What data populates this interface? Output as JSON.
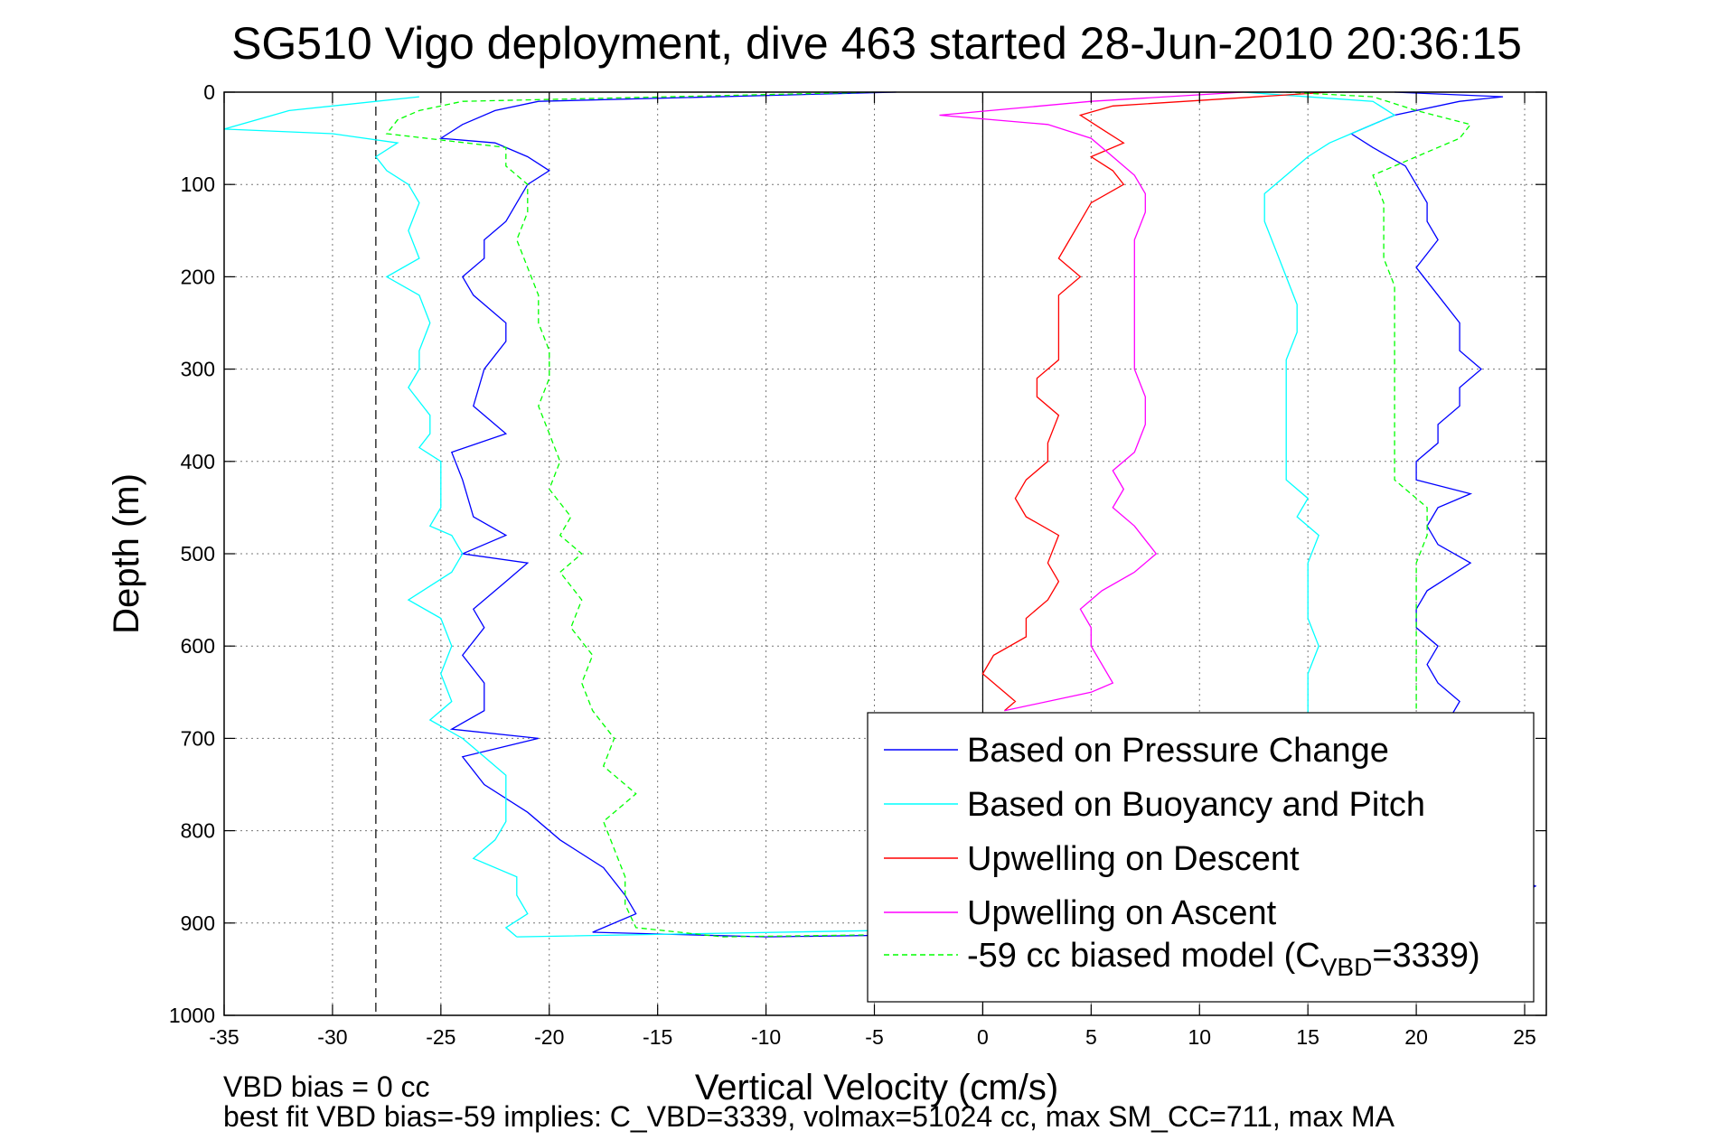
{
  "chart_data": {
    "type": "line",
    "title": "SG510 Vigo deployment, dive 463 started 28-Jun-2010 20:36:15",
    "xlabel": "Vertical Velocity (cm/s)",
    "ylabel": "Depth (m)",
    "xlim": [
      -35,
      26
    ],
    "ylim": [
      0,
      1000
    ],
    "y_reversed": true,
    "xticks": [
      -35,
      -30,
      -25,
      -20,
      -15,
      -10,
      -5,
      0,
      5,
      10,
      15,
      20,
      25
    ],
    "yticks": [
      0,
      100,
      200,
      300,
      400,
      500,
      600,
      700,
      800,
      900,
      1000
    ],
    "grid": true,
    "legend_position": "bottom-right",
    "vbd_bias_line_x": -28,
    "zero_line_x": 0,
    "notes": [
      "VBD bias = 0 cc",
      "best fit VBD bias=-59 implies: C_VBD=3339, volmax=51024 cc, max SM_CC=711, max MA"
    ],
    "series": [
      {
        "name": "Based on Pressure Change",
        "color": "#0000ff",
        "dash": "solid",
        "points": [
          [
            -4,
            0
          ],
          [
            -20.5,
            10
          ],
          [
            -22.5,
            20
          ],
          [
            -24,
            35
          ],
          [
            -25,
            50
          ],
          [
            -22.5,
            55
          ],
          [
            -21,
            70
          ],
          [
            -20,
            85
          ],
          [
            -21,
            100
          ],
          [
            -21.5,
            120
          ],
          [
            -22,
            140
          ],
          [
            -23,
            160
          ],
          [
            -23,
            180
          ],
          [
            -24,
            200
          ],
          [
            -23.5,
            220
          ],
          [
            -22,
            250
          ],
          [
            -22,
            270
          ],
          [
            -23,
            300
          ],
          [
            -23.5,
            340
          ],
          [
            -22,
            370
          ],
          [
            -24.5,
            390
          ],
          [
            -24,
            420
          ],
          [
            -23.5,
            460
          ],
          [
            -22,
            480
          ],
          [
            -24,
            500
          ],
          [
            -21,
            510
          ],
          [
            -22,
            530
          ],
          [
            -23.5,
            560
          ],
          [
            -23,
            580
          ],
          [
            -24,
            610
          ],
          [
            -23,
            640
          ],
          [
            -23,
            670
          ],
          [
            -24.5,
            690
          ],
          [
            -20.5,
            700
          ],
          [
            -24,
            720
          ],
          [
            -23,
            750
          ],
          [
            -21,
            780
          ],
          [
            -19.5,
            810
          ],
          [
            -17.5,
            840
          ],
          [
            -16.5,
            870
          ],
          [
            -16,
            890
          ],
          [
            -18,
            910
          ],
          [
            -10,
            915
          ]
        ],
        "points_ascent": [
          [
            -10,
            915
          ],
          [
            22,
            905
          ],
          [
            25.5,
            860
          ],
          [
            22,
            820
          ],
          [
            21,
            800
          ],
          [
            22,
            760
          ],
          [
            22.5,
            730
          ],
          [
            22,
            700
          ],
          [
            21.5,
            680
          ],
          [
            22,
            660
          ],
          [
            21,
            640
          ],
          [
            20.5,
            620
          ],
          [
            21,
            600
          ],
          [
            20,
            580
          ],
          [
            20,
            560
          ],
          [
            20.5,
            540
          ],
          [
            22.5,
            510
          ],
          [
            21,
            490
          ],
          [
            20.5,
            470
          ],
          [
            21,
            450
          ],
          [
            22.5,
            435
          ],
          [
            20,
            420
          ],
          [
            20,
            400
          ],
          [
            21,
            380
          ],
          [
            21,
            360
          ],
          [
            22,
            340
          ],
          [
            22,
            320
          ],
          [
            23,
            300
          ],
          [
            22,
            280
          ],
          [
            22,
            250
          ],
          [
            21,
            220
          ],
          [
            20,
            190
          ],
          [
            21,
            160
          ],
          [
            20.5,
            140
          ],
          [
            20.5,
            120
          ],
          [
            20,
            100
          ],
          [
            19.5,
            80
          ],
          [
            18,
            60
          ],
          [
            17,
            45
          ],
          [
            19,
            25
          ],
          [
            22,
            10
          ],
          [
            24,
            5
          ],
          [
            19,
            0
          ]
        ]
      },
      {
        "name": "Based on Buoyancy and Pitch",
        "color": "#00ffff",
        "dash": "solid",
        "points": [
          [
            -26,
            5
          ],
          [
            -32,
            20
          ],
          [
            -35,
            40
          ],
          [
            -30,
            45
          ],
          [
            -27,
            55
          ],
          [
            -28,
            70
          ],
          [
            -27.5,
            85
          ],
          [
            -26.5,
            100
          ],
          [
            -26,
            120
          ],
          [
            -26.5,
            150
          ],
          [
            -26,
            180
          ],
          [
            -27.5,
            200
          ],
          [
            -26,
            220
          ],
          [
            -25.5,
            250
          ],
          [
            -26,
            280
          ],
          [
            -26,
            300
          ],
          [
            -26.5,
            320
          ],
          [
            -25.5,
            350
          ],
          [
            -25.5,
            370
          ],
          [
            -26,
            385
          ],
          [
            -25,
            400
          ],
          [
            -25,
            430
          ],
          [
            -25,
            450
          ],
          [
            -25.5,
            470
          ],
          [
            -24.5,
            480
          ],
          [
            -24,
            500
          ],
          [
            -24.5,
            520
          ],
          [
            -26.5,
            550
          ],
          [
            -25,
            570
          ],
          [
            -24.5,
            600
          ],
          [
            -25,
            630
          ],
          [
            -24.5,
            660
          ],
          [
            -25.5,
            680
          ],
          [
            -24,
            700
          ],
          [
            -23,
            720
          ],
          [
            -22,
            740
          ],
          [
            -22,
            760
          ],
          [
            -22,
            790
          ],
          [
            -22.5,
            810
          ],
          [
            -23.5,
            830
          ],
          [
            -21.5,
            850
          ],
          [
            -21.5,
            870
          ],
          [
            -21,
            890
          ],
          [
            -22,
            905
          ],
          [
            -21.5,
            915
          ]
        ],
        "points_ascent": [
          [
            -21.5,
            915
          ],
          [
            15,
            900
          ],
          [
            15,
            860
          ],
          [
            15.5,
            820
          ],
          [
            15,
            780
          ],
          [
            15,
            740
          ],
          [
            15,
            700
          ],
          [
            15,
            660
          ],
          [
            15,
            630
          ],
          [
            15.5,
            600
          ],
          [
            15,
            570
          ],
          [
            15,
            540
          ],
          [
            15,
            510
          ],
          [
            15.5,
            480
          ],
          [
            14.5,
            460
          ],
          [
            15,
            440
          ],
          [
            14,
            420
          ],
          [
            14,
            390
          ],
          [
            14,
            360
          ],
          [
            14,
            320
          ],
          [
            14,
            290
          ],
          [
            14.5,
            260
          ],
          [
            14.5,
            230
          ],
          [
            14,
            200
          ],
          [
            13.5,
            170
          ],
          [
            13,
            140
          ],
          [
            13,
            110
          ],
          [
            14,
            90
          ],
          [
            15,
            70
          ],
          [
            16,
            55
          ],
          [
            17.5,
            40
          ],
          [
            19,
            25
          ],
          [
            18,
            10
          ],
          [
            12,
            0
          ]
        ]
      },
      {
        "name": "Upwelling on Descent",
        "color": "#ff0000",
        "dash": "solid",
        "points": [
          [
            16,
            0
          ],
          [
            6,
            15
          ],
          [
            4.5,
            25
          ],
          [
            5.5,
            40
          ],
          [
            6.5,
            55
          ],
          [
            5,
            70
          ],
          [
            6,
            85
          ],
          [
            6.5,
            100
          ],
          [
            5,
            120
          ],
          [
            4.5,
            140
          ],
          [
            4,
            160
          ],
          [
            3.5,
            180
          ],
          [
            4.5,
            200
          ],
          [
            3.5,
            220
          ],
          [
            3.5,
            240
          ],
          [
            3.5,
            260
          ],
          [
            3.5,
            290
          ],
          [
            2.5,
            310
          ],
          [
            2.5,
            330
          ],
          [
            3.5,
            350
          ],
          [
            3,
            380
          ],
          [
            3,
            400
          ],
          [
            2,
            420
          ],
          [
            1.5,
            440
          ],
          [
            2,
            460
          ],
          [
            3.5,
            480
          ],
          [
            3,
            510
          ],
          [
            3.5,
            530
          ],
          [
            3,
            550
          ],
          [
            2,
            570
          ],
          [
            2,
            590
          ],
          [
            0.5,
            610
          ],
          [
            0,
            630
          ],
          [
            1,
            650
          ],
          [
            1.5,
            660
          ],
          [
            1,
            670
          ]
        ]
      },
      {
        "name": "Upwelling on Ascent",
        "color": "#ff00ff",
        "dash": "solid",
        "points": [
          [
            1,
            670
          ],
          [
            5,
            650
          ],
          [
            6,
            640
          ],
          [
            5.5,
            620
          ],
          [
            5,
            600
          ],
          [
            5,
            580
          ],
          [
            4.5,
            560
          ],
          [
            5.5,
            540
          ],
          [
            7,
            520
          ],
          [
            8,
            500
          ],
          [
            7,
            470
          ],
          [
            6,
            450
          ],
          [
            6.5,
            430
          ],
          [
            6,
            410
          ],
          [
            7,
            390
          ],
          [
            7.5,
            360
          ],
          [
            7.5,
            330
          ],
          [
            7,
            300
          ],
          [
            7,
            280
          ],
          [
            7,
            260
          ],
          [
            7,
            240
          ],
          [
            7,
            220
          ],
          [
            7,
            190
          ],
          [
            7,
            160
          ],
          [
            7.5,
            130
          ],
          [
            7.5,
            110
          ],
          [
            7,
            90
          ],
          [
            6,
            70
          ],
          [
            5,
            50
          ],
          [
            3,
            35
          ],
          [
            -2,
            25
          ],
          [
            5,
            10
          ],
          [
            12,
            0
          ]
        ]
      },
      {
        "name": "-59 cc biased model (C_VBD=3339)",
        "color": "#00ff00",
        "dash": "dashed",
        "points": [
          [
            -5,
            0
          ],
          [
            -24,
            10
          ],
          [
            -26,
            20
          ],
          [
            -27,
            30
          ],
          [
            -27.5,
            45
          ],
          [
            -22,
            60
          ],
          [
            -22,
            80
          ],
          [
            -21,
            100
          ],
          [
            -21,
            130
          ],
          [
            -21.5,
            160
          ],
          [
            -21,
            190
          ],
          [
            -20.5,
            220
          ],
          [
            -20.5,
            250
          ],
          [
            -20,
            280
          ],
          [
            -20,
            310
          ],
          [
            -20.5,
            340
          ],
          [
            -20,
            370
          ],
          [
            -19.5,
            400
          ],
          [
            -20,
            430
          ],
          [
            -19,
            460
          ],
          [
            -19.5,
            480
          ],
          [
            -18.5,
            500
          ],
          [
            -19.5,
            520
          ],
          [
            -18.5,
            550
          ],
          [
            -19,
            580
          ],
          [
            -18,
            610
          ],
          [
            -18.5,
            640
          ],
          [
            -18,
            670
          ],
          [
            -17,
            700
          ],
          [
            -17.5,
            730
          ],
          [
            -16,
            760
          ],
          [
            -17.5,
            790
          ],
          [
            -17,
            820
          ],
          [
            -16.5,
            850
          ],
          [
            -16.5,
            880
          ],
          [
            -16,
            905
          ],
          [
            -12,
            915
          ]
        ],
        "points_ascent": [
          [
            -12,
            915
          ],
          [
            20,
            905
          ],
          [
            20,
            870
          ],
          [
            20,
            840
          ],
          [
            20,
            810
          ],
          [
            20,
            780
          ],
          [
            20,
            750
          ],
          [
            20,
            720
          ],
          [
            20,
            690
          ],
          [
            20,
            660
          ],
          [
            20,
            630
          ],
          [
            20,
            600
          ],
          [
            20,
            570
          ],
          [
            20,
            540
          ],
          [
            20,
            510
          ],
          [
            20.5,
            480
          ],
          [
            20.5,
            450
          ],
          [
            19,
            420
          ],
          [
            19,
            390
          ],
          [
            19,
            360
          ],
          [
            19,
            330
          ],
          [
            19,
            300
          ],
          [
            19,
            270
          ],
          [
            19,
            240
          ],
          [
            19,
            210
          ],
          [
            18.5,
            180
          ],
          [
            18.5,
            150
          ],
          [
            18.5,
            120
          ],
          [
            18,
            90
          ],
          [
            20,
            70
          ],
          [
            22,
            50
          ],
          [
            22.5,
            35
          ],
          [
            20,
            20
          ],
          [
            18,
            5
          ],
          [
            14,
            0
          ]
        ]
      }
    ]
  }
}
